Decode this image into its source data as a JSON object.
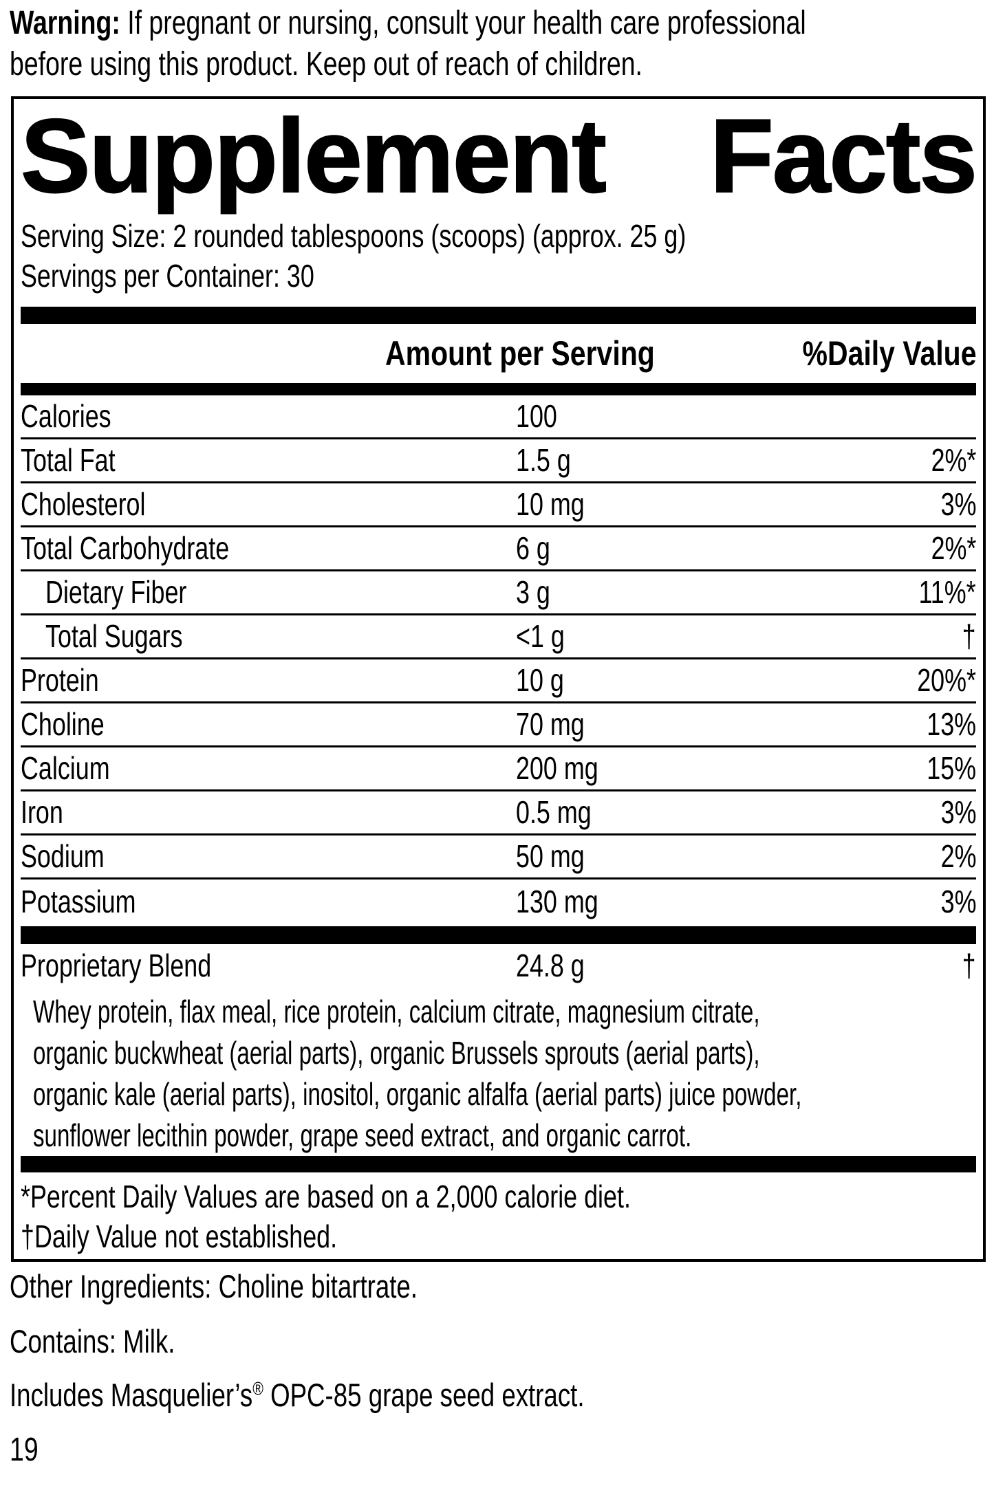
{
  "warning": {
    "label": "Warning:",
    "line1": " If pregnant or nursing, consult your health care professional",
    "line2": "before using this product. Keep out of reach of children."
  },
  "facts": {
    "title_left": "Supplement",
    "title_right": "Facts",
    "serving_size": "Serving Size: 2 rounded tablespoons (scoops) (approx. 25 g)",
    "servings_per_container": "Servings per Container: 30",
    "col_amount": "Amount per Serving",
    "col_dv": "%Daily Value",
    "rows": [
      {
        "label": "Calories",
        "amount": "100",
        "dv": "",
        "indent": false
      },
      {
        "label": "Total Fat",
        "amount": "1.5 g",
        "dv": "2%*",
        "indent": false
      },
      {
        "label": "Cholesterol",
        "amount": "10 mg",
        "dv": "3%",
        "indent": false
      },
      {
        "label": "Total Carbohydrate",
        "amount": "6 g",
        "dv": "2%*",
        "indent": false
      },
      {
        "label": "Dietary Fiber",
        "amount": "3 g",
        "dv": "11%*",
        "indent": true
      },
      {
        "label": "Total Sugars",
        "amount": "<1 g",
        "dv": "†",
        "indent": true
      },
      {
        "label": "Protein",
        "amount": "10 g",
        "dv": "20%*",
        "indent": false
      },
      {
        "label": "Choline",
        "amount": "70 mg",
        "dv": "13%",
        "indent": false
      },
      {
        "label": "Calcium",
        "amount": "200 mg",
        "dv": "15%",
        "indent": false
      },
      {
        "label": "Iron",
        "amount": "0.5 mg",
        "dv": "3%",
        "indent": false
      },
      {
        "label": "Sodium",
        "amount": "50 mg",
        "dv": "2%",
        "indent": false
      },
      {
        "label": "Potassium",
        "amount": "130 mg",
        "dv": "3%",
        "indent": false
      }
    ],
    "blend": {
      "label": "Proprietary Blend",
      "amount": "24.8 g",
      "dv": "†",
      "description_lines": [
        "Whey protein, flax meal, rice protein, calcium citrate, magnesium citrate,",
        "organic buckwheat (aerial parts), organic Brussels sprouts (aerial parts),",
        "organic kale (aerial parts), inositol, organic alfalfa (aerial parts) juice powder,",
        "sunflower lecithin powder, grape seed extract, and organic carrot."
      ]
    },
    "footnotes": [
      "*Percent Daily Values are based on a 2,000 calorie diet.",
      "†Daily Value not established."
    ]
  },
  "below": {
    "other_ingredients": "Other Ingredients: Choline bitartrate.",
    "contains": "Contains: Milk.",
    "includes_pre": "Includes Masquelier’s",
    "includes_sup": "®",
    "includes_post": " OPC-85 grape seed extract.",
    "page_number": "19"
  }
}
